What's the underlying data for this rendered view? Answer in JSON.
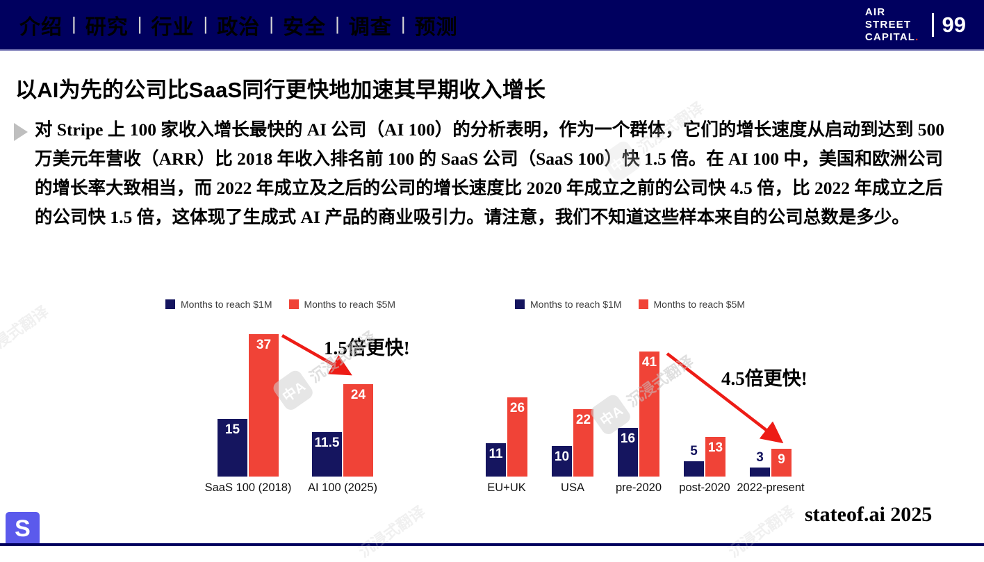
{
  "nav": {
    "items": [
      "介绍",
      "研究",
      "行业",
      "政治",
      "安全",
      "调查",
      "预测"
    ],
    "separator": "|",
    "logo": {
      "line1": "AIR",
      "line2": "STREET",
      "line3": "CAPITAL",
      "dot": ".",
      "page": "99"
    }
  },
  "slide": {
    "title": "以AI为先的公司比SaaS同行更快地加速其早期收入增长",
    "body": "对 Stripe 上 100 家收入增长最快的 AI 公司（AI 100）的分析表明，作为一个群体，它们的增长速度从启动到达到 500 万美元年营收（ARR）比 2018 年收入排名前 100 的 SaaS 公司（SaaS 100）快 1.5 倍。在 AI 100 中，美国和欧洲公司的增长率大致相当，而 2022 年成立及之后的公司的增长速度比 2020 年成立之前的公司快 4.5 倍，比 2022 年成立之后的公司快 1.5 倍，这体现了生成式 AI 产品的商业吸引力。请注意，我们不知道这些样本来自的公司总数是多少。",
    "footer_brand": "stateof.ai 2025",
    "footer_logo_letter": "S"
  },
  "colors": {
    "nav_bg": "#00005f",
    "bar_1m": "#15155f",
    "bar_5m": "#f04337",
    "arrow_red": "#ed1c16",
    "s_logo_bg": "#5b5aec"
  },
  "chart_data": [
    {
      "type": "bar",
      "title": "",
      "categories": [
        "SaaS 100 (2018)",
        "AI 100 (2025)"
      ],
      "series": [
        {
          "name": "Months to reach $1M",
          "color": "#15155f",
          "values": [
            15,
            11.5
          ]
        },
        {
          "name": "Months to reach $5M",
          "color": "#f04337",
          "values": [
            37,
            24
          ]
        }
      ],
      "legend": [
        "Months to reach $1M",
        "Months to reach $5M"
      ],
      "legend_position": "top",
      "grid": false,
      "ylim": [
        0,
        37
      ],
      "annotation": {
        "text": "1.5倍更快!"
      }
    },
    {
      "type": "bar",
      "title": "",
      "categories": [
        "EU+UK",
        "USA",
        "pre-2020",
        "post-2020",
        "2022-present"
      ],
      "series": [
        {
          "name": "Months to reach $1M",
          "color": "#15155f",
          "values": [
            11,
            10,
            16,
            5,
            3
          ]
        },
        {
          "name": "Months to reach $5M",
          "color": "#f04337",
          "values": [
            26,
            22,
            41,
            13,
            9
          ]
        }
      ],
      "legend": [
        "Months to reach $1M",
        "Months to reach $5M"
      ],
      "legend_position": "top",
      "grid": false,
      "ylim": [
        0,
        41
      ],
      "annotation": {
        "text": "4.5倍更快!"
      }
    }
  ],
  "watermark": {
    "logo": "中A",
    "text": "沉浸式翻译"
  }
}
